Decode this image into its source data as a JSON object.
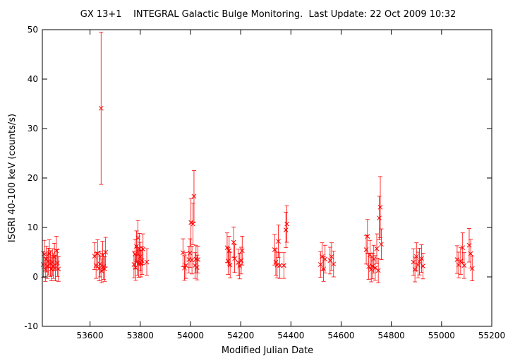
{
  "chart_data": {
    "type": "scatter",
    "title": "GX 13+1    INTEGRAL Galactic Bulge Monitoring.  Last Update: 22 Oct 2009 10:32",
    "xlabel": "Modified Julian Date",
    "ylabel": "ISGRI 40-100 keV (counts/s)",
    "xlim": [
      53410,
      55200
    ],
    "ylim": [
      -10,
      50
    ],
    "x_ticks": [
      53600,
      53800,
      54000,
      54200,
      54400,
      54600,
      54800,
      55000,
      55200
    ],
    "y_ticks": [
      -10,
      0,
      10,
      20,
      30,
      40,
      50
    ],
    "grid": false,
    "legend": "none",
    "series_color": "#ff0000",
    "series": [
      {
        "x": [
          53414,
          53418,
          53422,
          53426,
          53430,
          53434,
          53438,
          53442,
          53446,
          53450,
          53454,
          53458,
          53462,
          53466,
          53470,
          53474,
          53618,
          53624,
          53630,
          53636,
          53640,
          53644,
          53646,
          53650,
          53654,
          53658,
          53662,
          53775,
          53779,
          53782,
          53785,
          53788,
          53791,
          53794,
          53797,
          53800,
          53803,
          53807,
          53811,
          53826,
          53970,
          53976,
          53982,
          53994,
          53998,
          54002,
          54006,
          54010,
          54014,
          54018,
          54022,
          54026,
          54030,
          54146,
          54150,
          54154,
          54158,
          54172,
          54176,
          54190,
          54196,
          54202,
          54206,
          54335,
          54340,
          54345,
          54350,
          54356,
          54372,
          54380,
          54384,
          54518,
          54524,
          54530,
          54536,
          54556,
          54562,
          54570,
          54700,
          54705,
          54710,
          54715,
          54720,
          54725,
          54730,
          54736,
          54742,
          54748,
          54752,
          54756,
          54760,
          54888,
          54894,
          54900,
          54906,
          54912,
          54920,
          54926,
          55062,
          55068,
          55076,
          55084,
          55090,
          55110,
          55116,
          55122
        ],
        "y": [
          2.5,
          4.6,
          1.5,
          3.6,
          2.2,
          3.1,
          4.7,
          2.7,
          1.6,
          3.0,
          2.2,
          4.0,
          1.8,
          5.3,
          2.8,
          1.6,
          4.2,
          2.3,
          4.7,
          1.7,
          2.6,
          34.1,
          1.2,
          4.4,
          2.1,
          1.6,
          5.0,
          2.5,
          4.6,
          1.9,
          6.2,
          3.1,
          7.9,
          2.6,
          5.7,
          4.1,
          2.7,
          3.3,
          5.6,
          3.0,
          4.9,
          1.8,
          2.3,
          3.5,
          4.8,
          11.0,
          3.4,
          10.7,
          16.3,
          2.3,
          3.6,
          1.9,
          3.5,
          5.9,
          3.2,
          5.3,
          2.4,
          7.0,
          3.7,
          2.9,
          2.2,
          3.3,
          5.3,
          5.5,
          3.0,
          2.4,
          7.2,
          2.3,
          2.3,
          9.5,
          10.7,
          2.5,
          4.1,
          1.6,
          3.6,
          3.3,
          4.1,
          2.6,
          5.5,
          8.2,
          2.1,
          4.5,
          1.5,
          2.2,
          3.6,
          1.8,
          5.7,
          1.3,
          11.9,
          14.1,
          6.6,
          3.0,
          1.5,
          4.1,
          2.4,
          3.1,
          3.7,
          2.2,
          3.5,
          2.4,
          3.2,
          5.9,
          2.3,
          6.4,
          4.7,
          1.7
        ],
        "err": [
          2.6,
          2.8,
          2.4,
          2.6,
          2.5,
          2.7,
          2.8,
          2.6,
          2.4,
          2.7,
          2.5,
          2.8,
          2.6,
          2.9,
          2.7,
          2.5,
          2.7,
          2.6,
          2.8,
          2.5,
          2.6,
          15.4,
          2.4,
          2.8,
          2.6,
          2.5,
          3.0,
          2.7,
          3.0,
          2.6,
          3.1,
          2.8,
          3.5,
          2.7,
          3.1,
          2.9,
          2.7,
          2.8,
          3.1,
          2.7,
          2.8,
          2.5,
          2.6,
          2.7,
          2.9,
          4.8,
          2.8,
          4.2,
          5.2,
          2.6,
          2.8,
          2.5,
          2.7,
          3.0,
          2.7,
          2.9,
          2.6,
          3.1,
          2.8,
          2.7,
          2.6,
          2.7,
          2.9,
          3.1,
          2.7,
          2.6,
          3.3,
          2.6,
          2.6,
          3.6,
          3.7,
          2.6,
          2.8,
          2.5,
          2.8,
          2.7,
          2.8,
          2.6,
          2.9,
          3.4,
          2.6,
          2.9,
          2.5,
          2.6,
          2.8,
          2.5,
          3.0,
          2.5,
          4.4,
          6.2,
          3.1,
          2.7,
          2.5,
          2.8,
          2.6,
          2.7,
          2.8,
          2.6,
          2.8,
          2.6,
          2.7,
          3.0,
          2.6,
          3.4,
          2.9,
          2.5
        ]
      }
    ]
  }
}
